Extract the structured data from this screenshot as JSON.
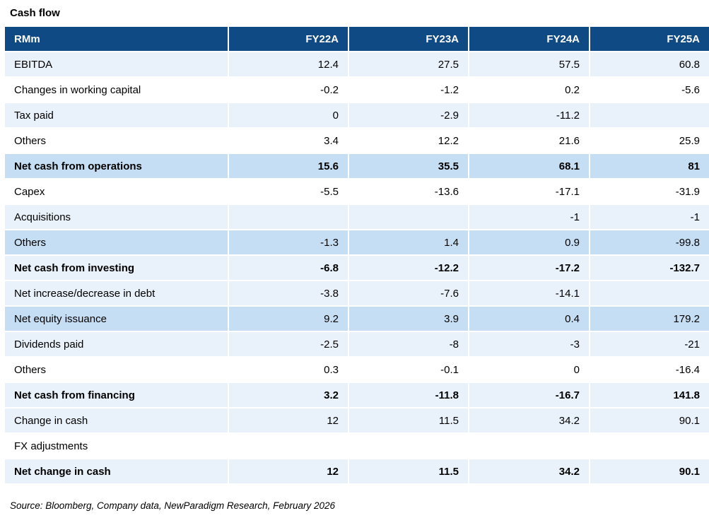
{
  "title": "Cash flow",
  "source": "Source: Bloomberg, Company data, NewParadigm Research, February 2026",
  "colors": {
    "header_bg": "#0F4A85",
    "row_light": "#E9F1FA",
    "row_medium": "#C6DEF3",
    "row_white": "#FFFFFF",
    "header_text": "#FFFFFF",
    "body_text": "#000000"
  },
  "table": {
    "unit_label": "RMm",
    "columns": [
      "FY22A",
      "FY23A",
      "FY24A",
      "FY25A"
    ],
    "rows": [
      {
        "label": "EBITDA",
        "values": [
          "12.4",
          "27.5",
          "57.5",
          "60.8"
        ],
        "style": "light",
        "bold": false
      },
      {
        "label": "Changes in working capital",
        "values": [
          "-0.2",
          "-1.2",
          "0.2",
          "-5.6"
        ],
        "style": "white",
        "bold": false
      },
      {
        "label": "Tax paid",
        "values": [
          "0",
          "-2.9",
          "-11.2",
          ""
        ],
        "style": "light",
        "bold": false
      },
      {
        "label": "Others",
        "values": [
          "3.4",
          "12.2",
          "21.6",
          "25.9"
        ],
        "style": "white",
        "bold": false
      },
      {
        "label": "Net cash from operations",
        "values": [
          "15.6",
          "35.5",
          "68.1",
          "81"
        ],
        "style": "medium",
        "bold": true
      },
      {
        "label": "Capex",
        "values": [
          "-5.5",
          "-13.6",
          "-17.1",
          "-31.9"
        ],
        "style": "white",
        "bold": false
      },
      {
        "label": "Acquisitions",
        "values": [
          "",
          "",
          "-1",
          "-1"
        ],
        "style": "light",
        "bold": false
      },
      {
        "label": "Others",
        "values": [
          "-1.3",
          "1.4",
          "0.9",
          "-99.8"
        ],
        "style": "medium",
        "bold": false
      },
      {
        "label": "Net cash from investing",
        "values": [
          "-6.8",
          "-12.2",
          "-17.2",
          "-132.7"
        ],
        "style": "light",
        "bold": true
      },
      {
        "label": "Net increase/decrease in debt",
        "values": [
          "-3.8",
          "-7.6",
          "-14.1",
          ""
        ],
        "style": "light",
        "bold": false
      },
      {
        "label": "Net equity issuance",
        "values": [
          "9.2",
          "3.9",
          "0.4",
          "179.2"
        ],
        "style": "medium",
        "bold": false
      },
      {
        "label": "Dividends paid",
        "values": [
          "-2.5",
          "-8",
          "-3",
          "-21"
        ],
        "style": "light",
        "bold": false
      },
      {
        "label": "Others",
        "values": [
          "0.3",
          "-0.1",
          "0",
          "-16.4"
        ],
        "style": "white",
        "bold": false
      },
      {
        "label": "Net cash from financing",
        "values": [
          "3.2",
          "-11.8",
          "-16.7",
          "141.8"
        ],
        "style": "light",
        "bold": true
      },
      {
        "label": "Change in cash",
        "values": [
          "12",
          "11.5",
          "34.2",
          "90.1"
        ],
        "style": "light",
        "bold": false
      },
      {
        "label": "FX adjustments",
        "values": [
          "",
          "",
          "",
          ""
        ],
        "style": "white",
        "bold": false
      },
      {
        "label": "Net change in cash",
        "values": [
          "12",
          "11.5",
          "34.2",
          "90.1"
        ],
        "style": "light",
        "bold": true
      }
    ]
  }
}
